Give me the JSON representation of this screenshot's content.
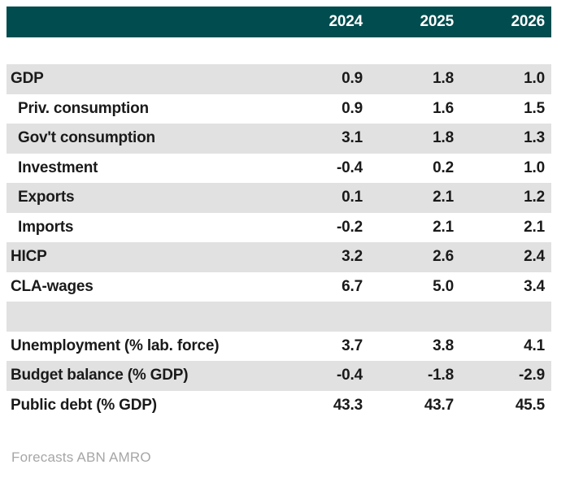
{
  "chart_data": {
    "type": "table",
    "columns": [
      "2024",
      "2025",
      "2026"
    ],
    "rows": [
      {
        "label": "GDP",
        "indent": false,
        "spacer": false,
        "values": [
          "0.9",
          "1.8",
          "1.0"
        ]
      },
      {
        "label": "Priv. consumption",
        "indent": true,
        "spacer": false,
        "values": [
          "0.9",
          "1.6",
          "1.5"
        ]
      },
      {
        "label": "Gov't consumption",
        "indent": true,
        "spacer": false,
        "values": [
          "3.1",
          "1.8",
          "1.3"
        ]
      },
      {
        "label": "Investment",
        "indent": true,
        "spacer": false,
        "values": [
          "-0.4",
          "0.2",
          "1.0"
        ]
      },
      {
        "label": "Exports",
        "indent": true,
        "spacer": false,
        "values": [
          "0.1",
          "2.1",
          "1.2"
        ]
      },
      {
        "label": "Imports",
        "indent": true,
        "spacer": false,
        "values": [
          "-0.2",
          "2.1",
          "2.1"
        ]
      },
      {
        "label": "HICP",
        "indent": false,
        "spacer": false,
        "values": [
          "3.2",
          "2.6",
          "2.4"
        ]
      },
      {
        "label": "CLA-wages",
        "indent": false,
        "spacer": false,
        "values": [
          "6.7",
          "5.0",
          "3.4"
        ]
      },
      {
        "label": "",
        "indent": false,
        "spacer": true,
        "values": [
          "",
          "",
          ""
        ]
      },
      {
        "label": "Unemployment (% lab. force)",
        "indent": false,
        "spacer": false,
        "values": [
          "3.7",
          "3.8",
          "4.1"
        ]
      },
      {
        "label": "Budget balance (% GDP)",
        "indent": false,
        "spacer": false,
        "values": [
          "-0.4",
          "-1.8",
          "-2.9"
        ]
      },
      {
        "label": "Public debt (% GDP)",
        "indent": false,
        "spacer": false,
        "values": [
          "43.3",
          "43.7",
          "45.5"
        ]
      }
    ],
    "source_note": "Forecasts ABN AMRO",
    "layout": {
      "grid": false,
      "header_position": "top",
      "value_alignment": "right"
    }
  },
  "colors": {
    "header_bg": "#004C4E",
    "row_alt_bg": "#E1E1E1",
    "text": "#1A1A1A",
    "footer_text": "#A6A6A6"
  }
}
